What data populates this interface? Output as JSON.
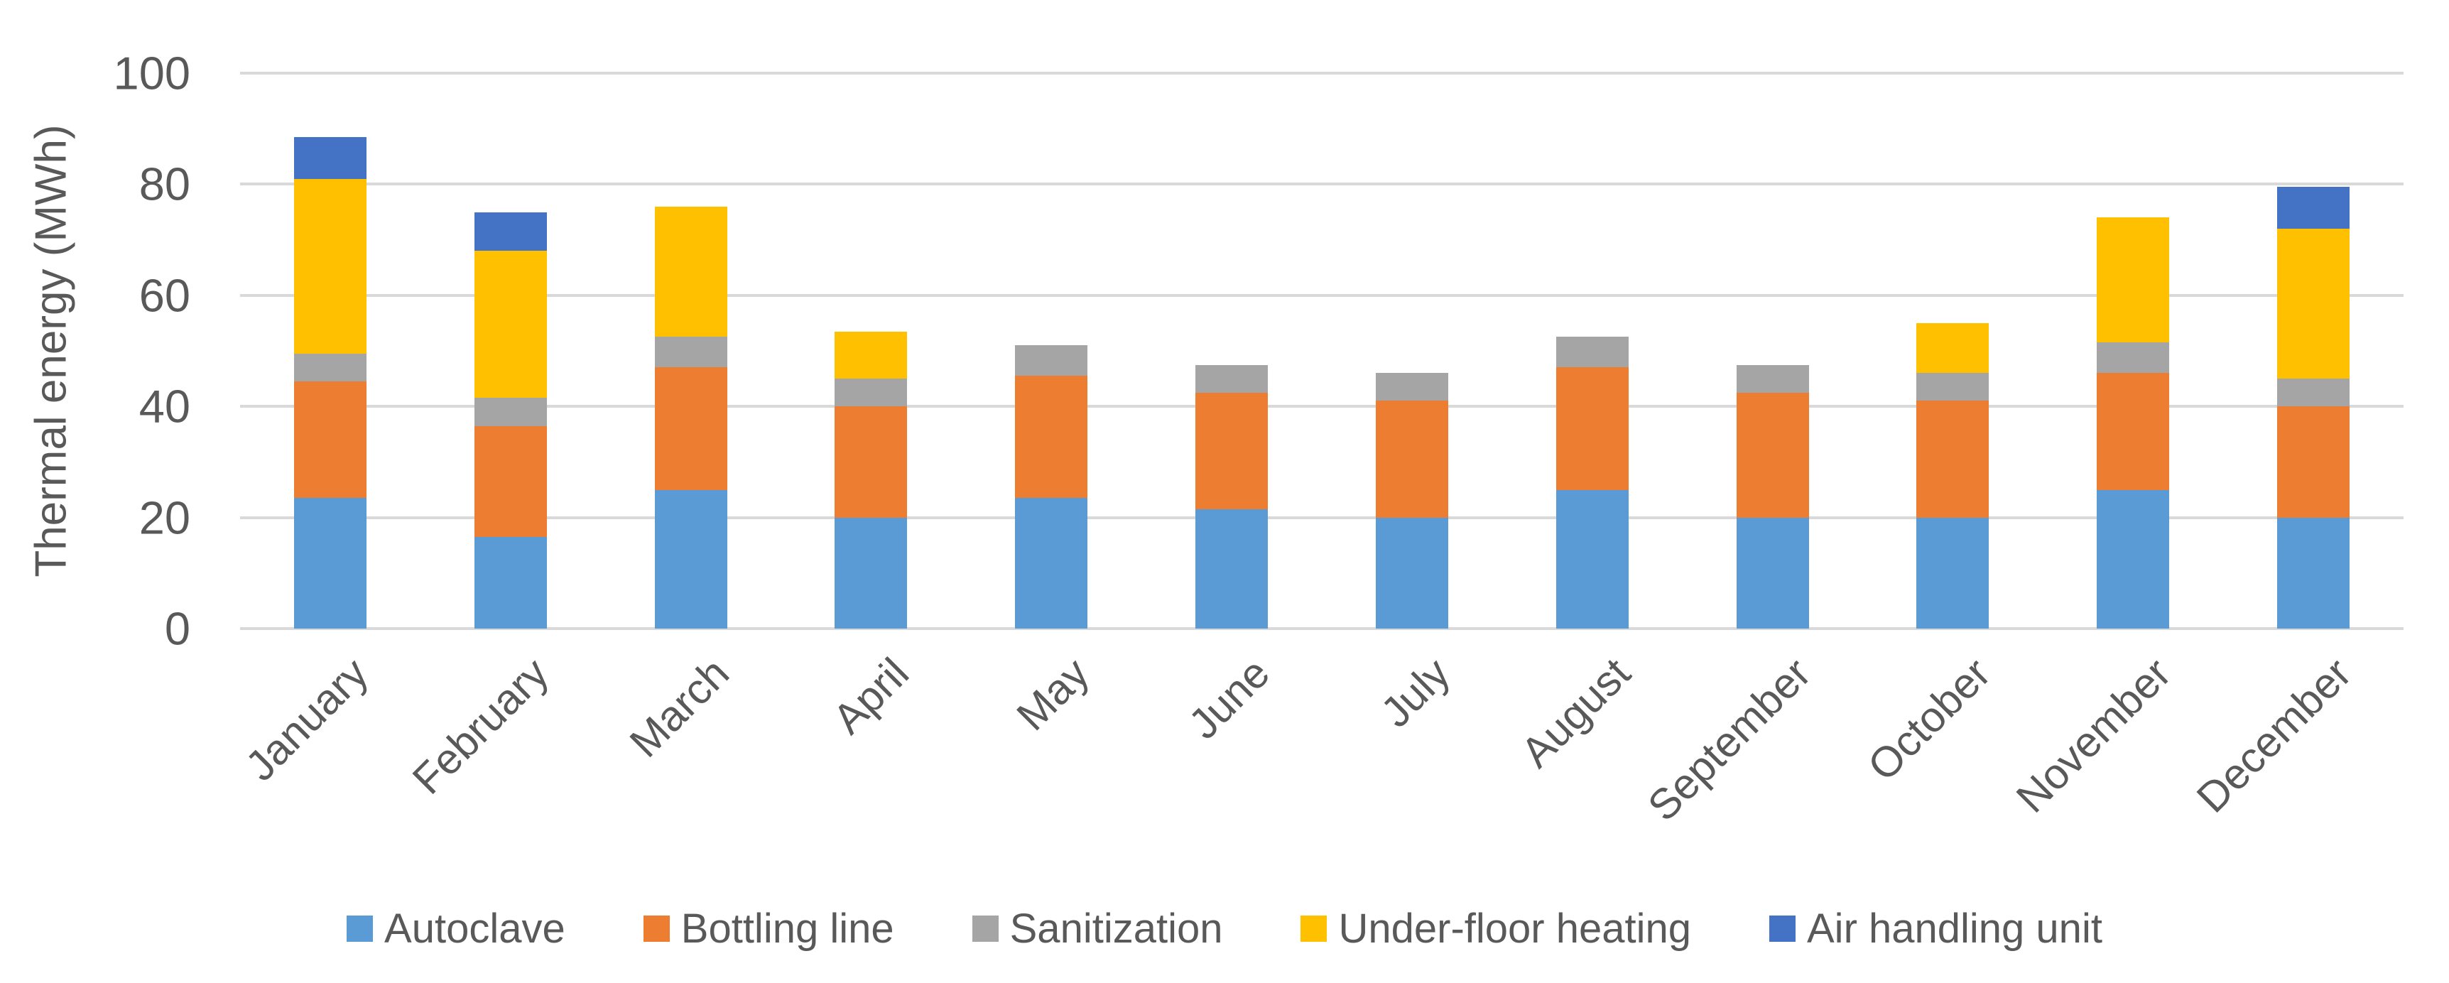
{
  "chart_data": {
    "type": "bar",
    "stacked": true,
    "title": "",
    "ylabel": "Thermal energy (MWh)",
    "xlabel": "",
    "ylim": [
      0,
      100
    ],
    "yticks": [
      0,
      20,
      40,
      60,
      80,
      100
    ],
    "grid": "horizontal-only",
    "legend_position": "bottom-center",
    "background_color": "#FFFFFF",
    "gridline_color": "#D9D9D9",
    "text_color": "#595959",
    "categories": [
      "January",
      "February",
      "March",
      "April",
      "May",
      "June",
      "July",
      "August",
      "September",
      "October",
      "November",
      "December"
    ],
    "series": [
      {
        "name": "Autoclave",
        "color": "#5B9BD5",
        "values": [
          23.5,
          16.5,
          25,
          20,
          23.5,
          21.5,
          20,
          25,
          20,
          20,
          25,
          20
        ]
      },
      {
        "name": "Bottling line",
        "color": "#ED7D31",
        "values": [
          21,
          20,
          22,
          20,
          22,
          21,
          21,
          22,
          22.5,
          21,
          21,
          20
        ]
      },
      {
        "name": "Sanitization",
        "color": "#A5A5A5",
        "values": [
          5,
          5,
          5.5,
          5,
          5.5,
          5,
          5,
          5.5,
          5,
          5,
          5.5,
          5
        ]
      },
      {
        "name": "Under-floor heating",
        "color": "#FFC000",
        "values": [
          31.5,
          26.5,
          23.5,
          8.5,
          0,
          0,
          0,
          0,
          0,
          9,
          22.5,
          27
        ]
      },
      {
        "name": "Air handling unit",
        "color": "#4472C4",
        "values": [
          7.5,
          7,
          0,
          0,
          0,
          0,
          0,
          0,
          0,
          0,
          0,
          7.5
        ]
      }
    ]
  }
}
